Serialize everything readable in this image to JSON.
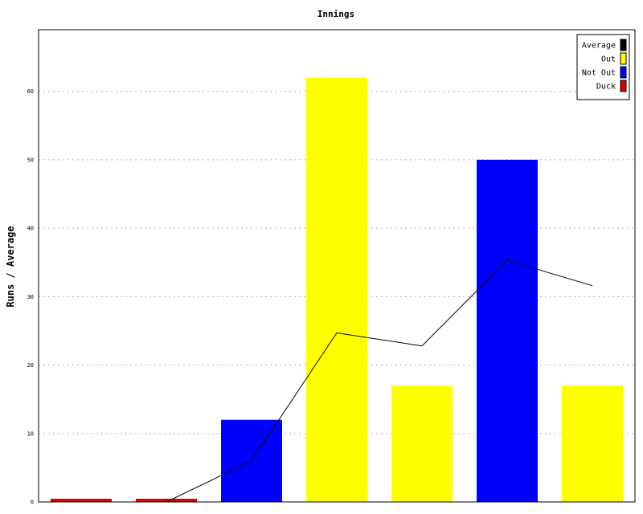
{
  "chart_data": {
    "type": "bar",
    "title": "Innings",
    "ylabel": "Runs / Average",
    "xlabel": "",
    "ylim": [
      0,
      69
    ],
    "yticks": [
      0,
      10,
      20,
      30,
      40,
      50,
      60
    ],
    "grid": true,
    "legend_position": "top-right",
    "legend": [
      {
        "name": "Average",
        "color": "#000000"
      },
      {
        "name": "Out",
        "color": "#ffff00"
      },
      {
        "name": "Not Out",
        "color": "#0000ff"
      },
      {
        "name": "Duck",
        "color": "#dd0000"
      }
    ],
    "bars": [
      {
        "value": 0,
        "status": "Duck"
      },
      {
        "value": 0,
        "status": "Duck"
      },
      {
        "value": 12,
        "status": "Not Out"
      },
      {
        "value": 62,
        "status": "Out"
      },
      {
        "value": 17,
        "status": "Out"
      },
      {
        "value": 50,
        "status": "Not Out"
      },
      {
        "value": 17,
        "status": "Out"
      }
    ],
    "average": [
      null,
      0,
      6,
      24.7,
      22.8,
      35.3,
      31.6
    ]
  }
}
